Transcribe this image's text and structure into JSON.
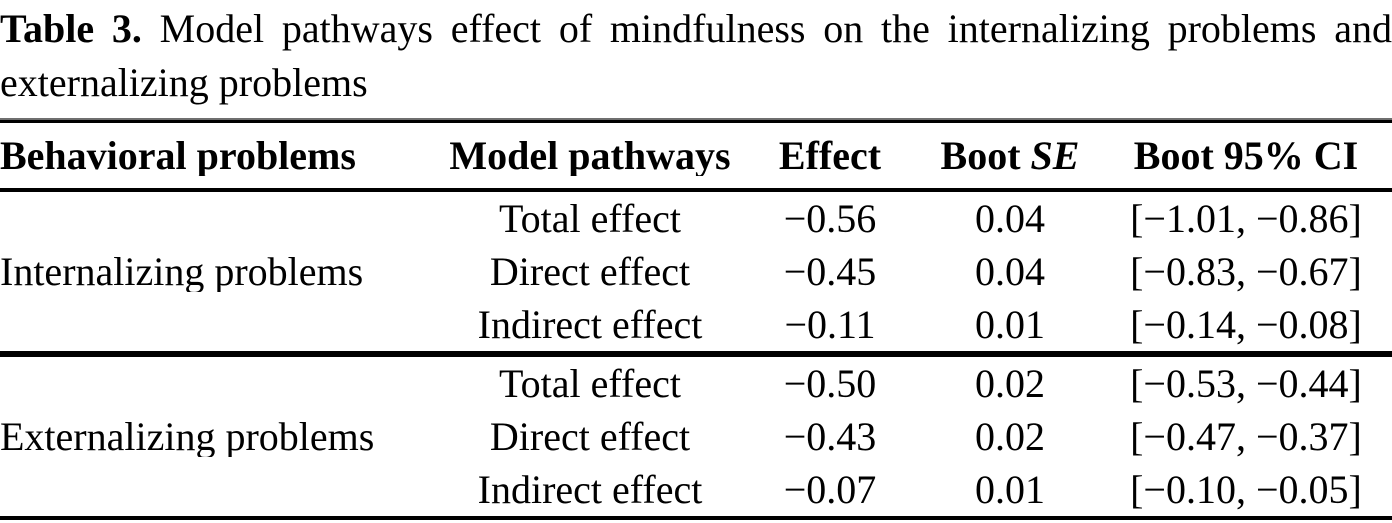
{
  "caption": {
    "label": "Table 3.",
    "line1_rest": " Model pathways effect of mindfulness on the internalizing problems and",
    "line2": "externalizing problems"
  },
  "header": {
    "col1": "Behavioral problems",
    "col2": "Model pathways",
    "col3": "Effect",
    "col4_prefix": "Boot ",
    "col4_italic": "SE",
    "col5": "Boot 95% CI"
  },
  "groups": [
    {
      "label": "Internalizing problems",
      "rows": [
        {
          "pathway": "Total effect",
          "effect": "−0.56",
          "boot_se": "0.04",
          "ci": "[−1.01, −0.86]"
        },
        {
          "pathway": "Direct effect",
          "effect": "−0.45",
          "boot_se": "0.04",
          "ci": "[−0.83, −0.67]"
        },
        {
          "pathway": "Indirect effect",
          "effect": "−0.11",
          "boot_se": "0.01",
          "ci": "[−0.14, −0.08]"
        }
      ]
    },
    {
      "label": "Externalizing problems",
      "rows": [
        {
          "pathway": "Total effect",
          "effect": "−0.50",
          "boot_se": "0.02",
          "ci": "[−0.53, −0.44]"
        },
        {
          "pathway": "Direct effect",
          "effect": "−0.43",
          "boot_se": "0.02",
          "ci": "[−0.47, −0.37]"
        },
        {
          "pathway": "Indirect effect",
          "effect": "−0.07",
          "boot_se": "0.01",
          "ci": "[−0.10, −0.05]"
        }
      ]
    }
  ]
}
